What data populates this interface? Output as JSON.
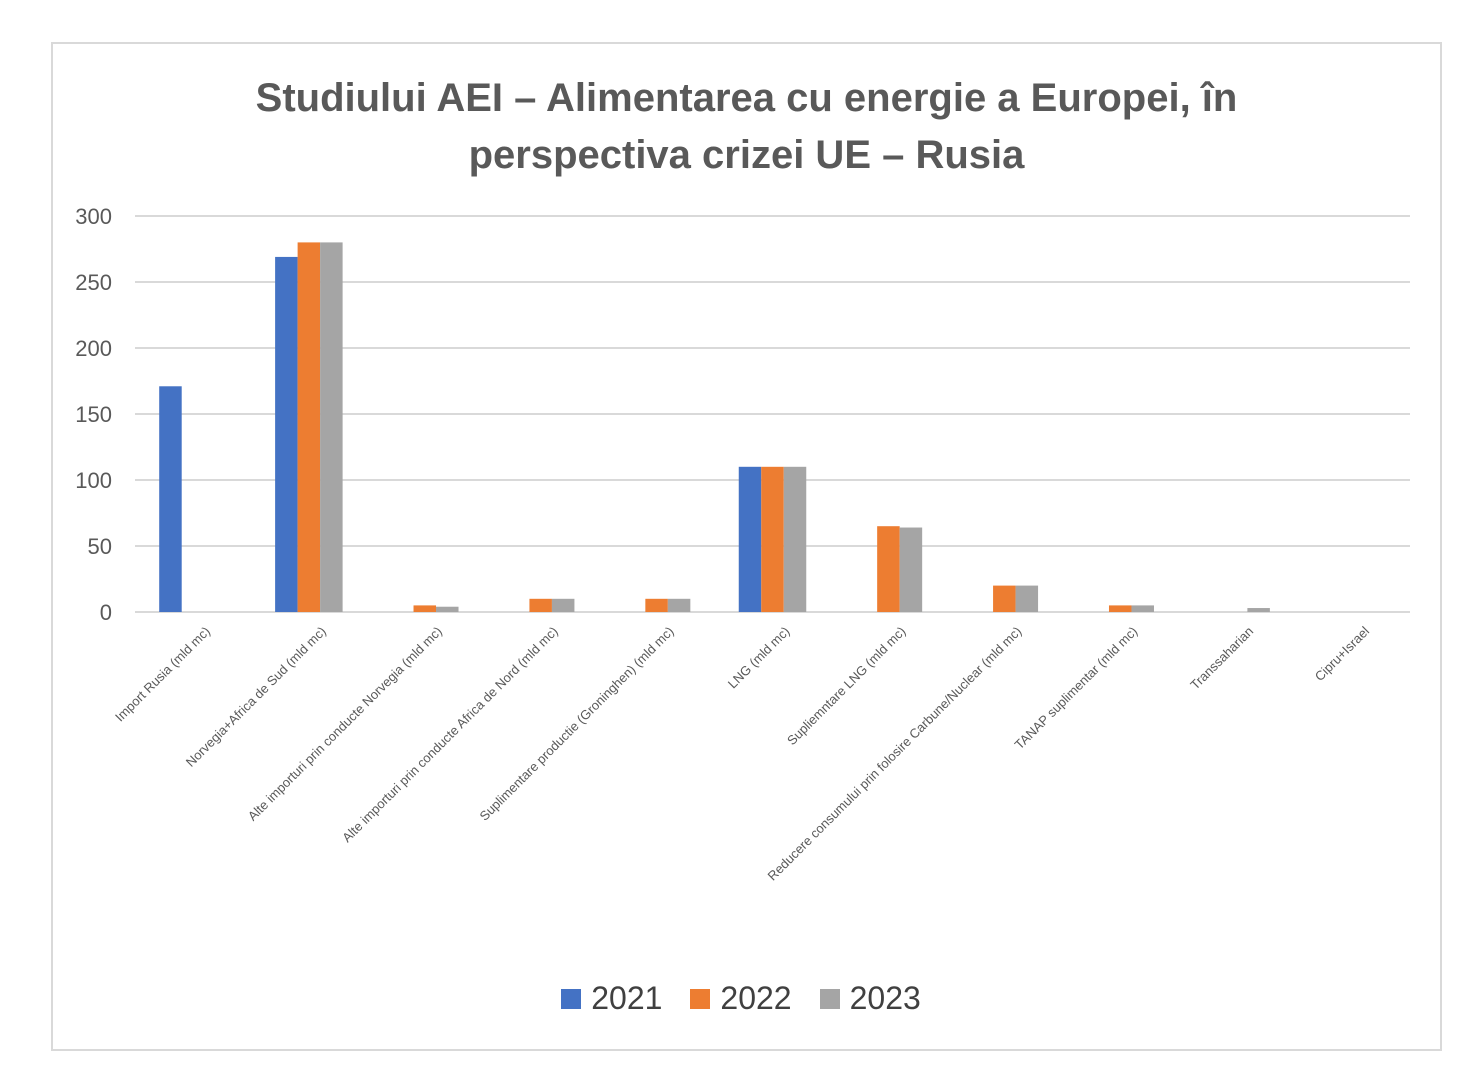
{
  "chart_data": {
    "type": "bar",
    "title": "Studiului AEI – Alimentarea cu energie a Europei, în perspectiva crizei UE – Rusia",
    "title_lines": [
      "Studiului AEI – Alimentarea cu energie a Europei, în",
      "perspectiva crizei UE – Rusia"
    ],
    "xlabel": "",
    "ylabel": "",
    "ylim": [
      0,
      300
    ],
    "yticks": [
      0,
      50,
      100,
      150,
      200,
      250,
      300
    ],
    "grid": true,
    "legend_position": "bottom",
    "categories": [
      "Import Rusia (mld mc)",
      "Norvegia+Africa de Sud (mld mc)",
      "Alte importuri prin conducte Norvegia (mld mc)",
      "Alte importuri prin conducte Africa de Nord (mld mc)",
      "Suplimentare productie (Groninghen) (mld mc)",
      "LNG (mld mc)",
      "Supliemntare LNG (mld mc)",
      "Reducere consumului prin folosire Carbune/Nuclear (mld mc)",
      "TANAP suplimentar (mld mc)",
      "Transsaharian",
      "Cipru+Israel"
    ],
    "series": [
      {
        "name": "2021",
        "color": "#4472c4",
        "values": [
          171,
          269,
          0,
          0,
          0,
          110,
          0,
          0,
          0,
          0,
          0
        ]
      },
      {
        "name": "2022",
        "color": "#ed7d31",
        "values": [
          0,
          280,
          5,
          10,
          10,
          110,
          65,
          20,
          5,
          0,
          0
        ]
      },
      {
        "name": "2023",
        "color": "#a5a5a5",
        "values": [
          0,
          280,
          4,
          10,
          10,
          110,
          64,
          20,
          5,
          3,
          0
        ]
      }
    ]
  }
}
